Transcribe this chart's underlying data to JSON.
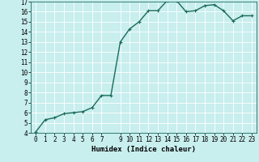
{
  "xlabel": "Humidex (Indice chaleur)",
  "x": [
    0,
    1,
    2,
    3,
    4,
    5,
    6,
    7,
    8,
    9,
    10,
    11,
    12,
    13,
    14,
    15,
    16,
    17,
    18,
    19,
    20,
    21,
    22,
    23
  ],
  "y": [
    4.1,
    5.3,
    5.5,
    5.9,
    6.0,
    6.1,
    6.5,
    7.7,
    7.7,
    13.0,
    14.3,
    15.0,
    16.1,
    16.1,
    17.1,
    17.1,
    16.0,
    16.1,
    16.6,
    16.7,
    16.1,
    15.1,
    15.6,
    15.6
  ],
  "line_color": "#1a6b5a",
  "marker": "+",
  "marker_size": 3,
  "bg_color": "#c8eeee",
  "grid_color": "#ffffff",
  "grid_minor_color": "#ddf5f5",
  "ylim": [
    4,
    17
  ],
  "xlim": [
    -0.5,
    23.5
  ],
  "yticks": [
    4,
    5,
    6,
    7,
    8,
    9,
    10,
    11,
    12,
    13,
    14,
    15,
    16,
    17
  ],
  "xticks": [
    0,
    1,
    2,
    3,
    4,
    5,
    6,
    7,
    9,
    10,
    11,
    12,
    13,
    14,
    15,
    16,
    17,
    18,
    19,
    20,
    21,
    22,
    23
  ],
  "xlabel_fontsize": 6.5,
  "tick_fontsize": 5.5,
  "line_width": 1.0,
  "marker_edge_width": 0.8
}
